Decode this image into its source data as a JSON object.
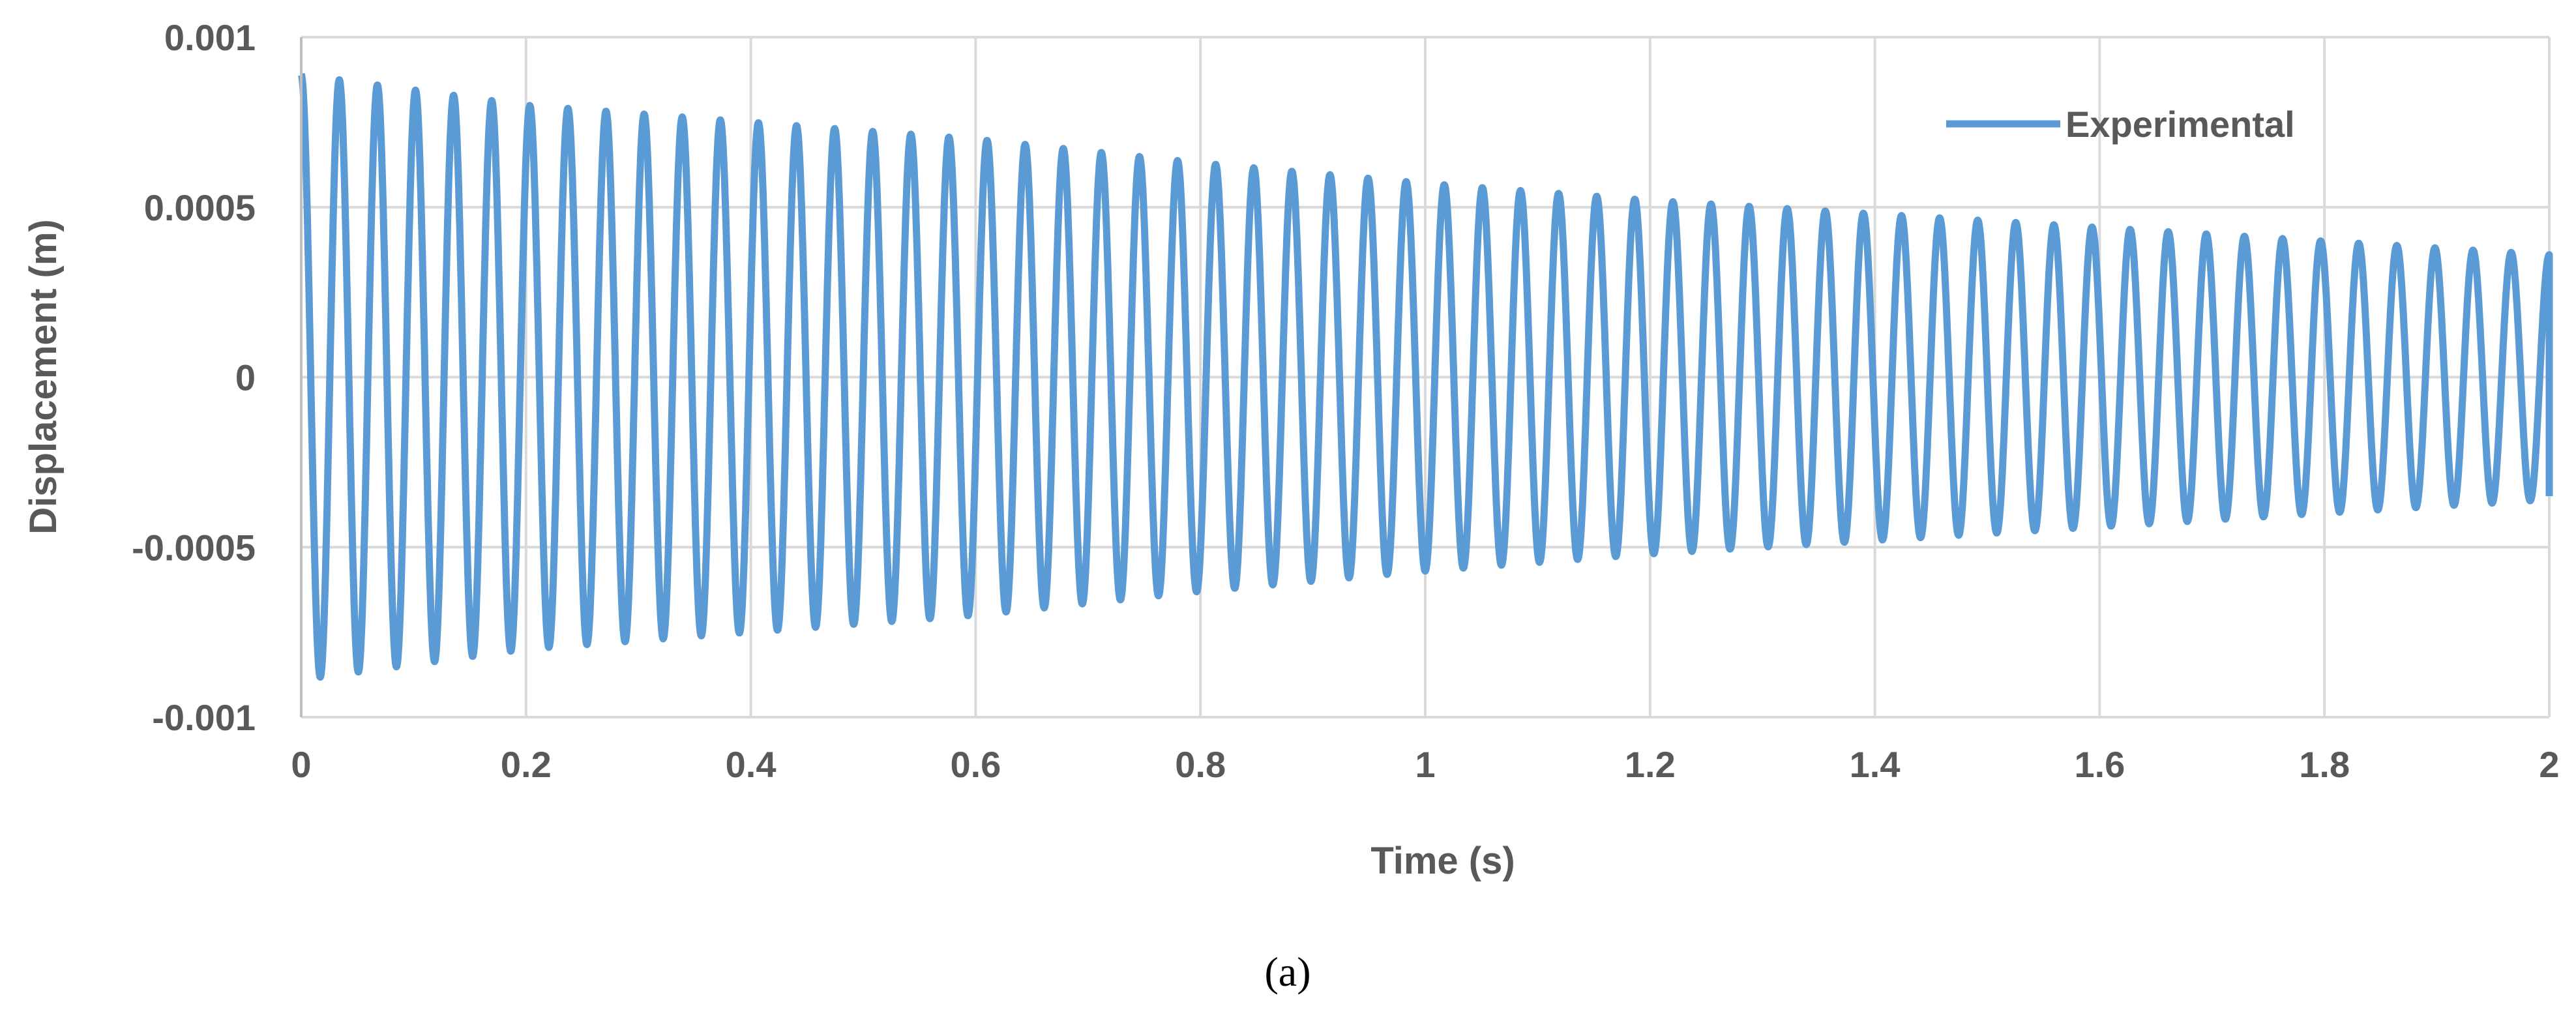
{
  "chart_data": {
    "type": "line",
    "title": "",
    "xlabel": "Time (s)",
    "ylabel": "Displacement (m)",
    "xlim": [
      0,
      2
    ],
    "ylim": [
      -0.001,
      0.001
    ],
    "x_ticks": [
      "0",
      "0.2",
      "0.4",
      "0.6",
      "0.8",
      "1",
      "1.2",
      "1.4",
      "1.6",
      "1.8",
      "2"
    ],
    "y_ticks": [
      "0.001",
      "0.0005",
      "0",
      "-0.0005",
      "-0.001"
    ],
    "grid": true,
    "legend_position": "top-right",
    "series": [
      {
        "name": "Experimental",
        "color": "#5b9bd5",
        "signal": {
          "form": "damped-sinusoid",
          "frequency_hz": 29.5,
          "peaks": [
            {
              "t": 0.0,
              "amplitude": 0.00089
            },
            {
              "t": 0.2,
              "amplitude": 0.0008
            },
            {
              "t": 0.4,
              "amplitude": 0.00075
            },
            {
              "t": 0.6,
              "amplitude": 0.0007
            },
            {
              "t": 0.8,
              "amplitude": 0.00063
            },
            {
              "t": 1.0,
              "amplitude": 0.00057
            },
            {
              "t": 1.2,
              "amplitude": 0.00052
            },
            {
              "t": 1.4,
              "amplitude": 0.00048
            },
            {
              "t": 1.6,
              "amplitude": 0.00044
            },
            {
              "t": 1.8,
              "amplitude": 0.0004
            },
            {
              "t": 2.0,
              "amplitude": 0.00036
            }
          ],
          "end_value": -0.00035
        }
      }
    ]
  },
  "caption": "(a)"
}
